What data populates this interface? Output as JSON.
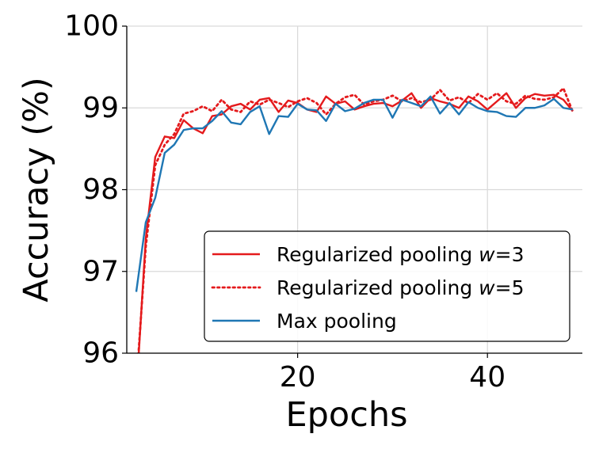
{
  "chart_data": {
    "type": "line",
    "xlabel": "Epochs",
    "ylabel": "Accuracy (%)",
    "xlim": [
      2,
      50
    ],
    "ylim": [
      96,
      100
    ],
    "x_ticks": [
      20,
      40
    ],
    "y_ticks": [
      96,
      97,
      98,
      99,
      100
    ],
    "x_tick_labels": [
      "20",
      "40"
    ],
    "y_tick_labels": [
      "96",
      "97",
      "98",
      "99",
      "100"
    ],
    "grid": true,
    "legend_position": "lower-right",
    "x": [
      3,
      4,
      5,
      6,
      7,
      8,
      9,
      10,
      11,
      12,
      13,
      14,
      15,
      16,
      17,
      18,
      19,
      20,
      21,
      22,
      23,
      24,
      25,
      26,
      27,
      28,
      29,
      30,
      31,
      32,
      33,
      34,
      35,
      36,
      37,
      38,
      39,
      40,
      41,
      42,
      43,
      44,
      45,
      46,
      47,
      48,
      49
    ],
    "series": [
      {
        "name": "Regularized pooling w=3",
        "name_parts": [
          "Regularized pooling ",
          "w",
          "=3"
        ],
        "color": "#e41a1c",
        "style": "solid",
        "values": [
          95.5,
          97.4,
          98.4,
          98.65,
          98.63,
          98.85,
          98.75,
          98.69,
          98.9,
          98.92,
          99.02,
          99.05,
          98.98,
          99.1,
          99.12,
          98.95,
          99.09,
          99.06,
          98.98,
          98.95,
          99.14,
          99.05,
          99.08,
          98.98,
          99.02,
          99.05,
          99.06,
          99.02,
          99.09,
          99.18,
          99.0,
          99.12,
          99.08,
          99.05,
          99.0,
          99.14,
          99.08,
          98.98,
          99.08,
          99.18,
          99.0,
          99.12,
          99.17,
          99.15,
          99.16,
          99.1,
          98.96
        ]
      },
      {
        "name": "Regularized pooling w=5",
        "name_parts": [
          "Regularized pooling ",
          "w",
          "=5"
        ],
        "color": "#e41a1c",
        "style": "dotted",
        "values": [
          95.6,
          97.3,
          98.3,
          98.55,
          98.68,
          98.93,
          98.96,
          99.02,
          98.96,
          99.1,
          98.98,
          98.95,
          99.08,
          99.04,
          99.1,
          99.06,
          99.01,
          99.08,
          99.12,
          99.06,
          98.92,
          99.05,
          99.13,
          99.16,
          99.04,
          99.08,
          99.1,
          99.15,
          99.08,
          99.12,
          99.07,
          99.1,
          99.22,
          99.09,
          99.13,
          99.06,
          99.17,
          99.1,
          99.18,
          99.08,
          99.05,
          99.15,
          99.11,
          99.1,
          99.13,
          99.24,
          98.95
        ]
      },
      {
        "name": "Max pooling",
        "name_parts": [
          "Max pooling",
          "",
          ""
        ],
        "color": "#1f77b4",
        "style": "solid",
        "values": [
          96.75,
          97.6,
          97.9,
          98.45,
          98.55,
          98.73,
          98.75,
          98.75,
          98.84,
          98.96,
          98.82,
          98.8,
          98.95,
          99.02,
          98.68,
          98.9,
          98.89,
          99.05,
          98.98,
          98.97,
          98.84,
          99.05,
          98.96,
          98.99,
          99.06,
          99.1,
          99.1,
          98.88,
          99.1,
          99.06,
          99.02,
          99.14,
          98.93,
          99.06,
          98.92,
          99.07,
          99.0,
          98.96,
          98.95,
          98.9,
          98.89,
          99.0,
          99.0,
          99.03,
          99.11,
          99.0,
          98.98
        ]
      }
    ]
  }
}
